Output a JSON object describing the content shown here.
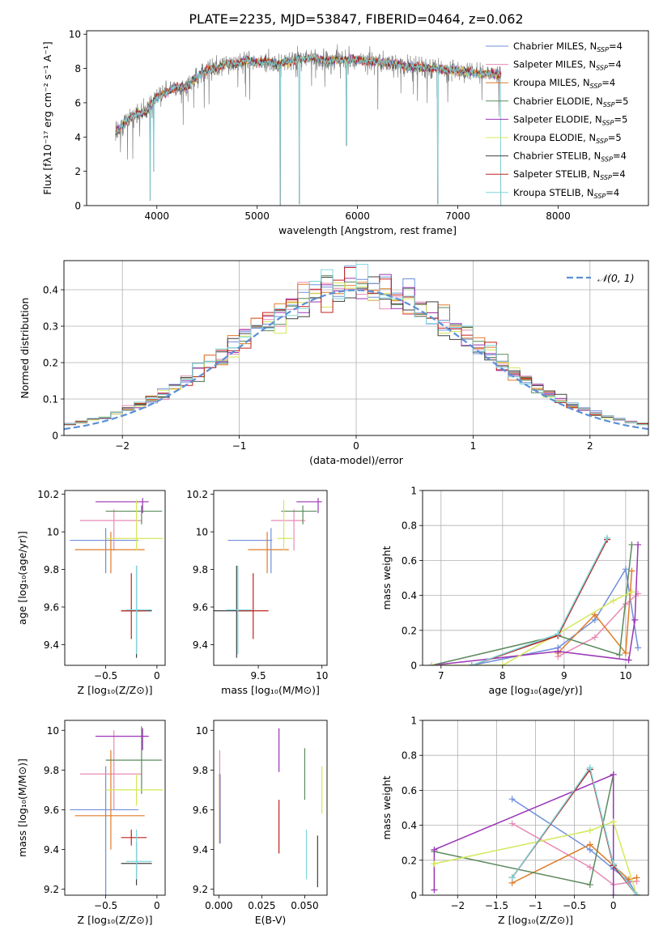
{
  "figure_title": "PLATE=2235, MJD=53847, FIBERID=0464, z=0.062",
  "colors": {
    "Chabrier MILES": "#6f8fdc",
    "Salpeter MILES": "#e88bb5",
    "Kroupa MILES": "#e07b28",
    "Chabrier ELODIE": "#5c8a5e",
    "Salpeter ELODIE": "#9b35b5",
    "Kroupa ELODIE": "#d4e85a",
    "Chabrier STELIB": "#404040",
    "Salpeter STELIB": "#c0221e",
    "Kroupa STELIB": "#7fd6dc",
    "data": "#808080",
    "gauss": "#5b8fd6",
    "grid": "#b0b0b0"
  },
  "chart_data": [
    {
      "id": "spectrum",
      "type": "line",
      "title": "PLATE=2235, MJD=53847, FIBERID=0464, z=0.062",
      "xlabel": "wavelength [Angstrom, rest frame]",
      "ylabel": "Flux [fλ10⁻¹⁷ erg cm⁻² s⁻¹ A⁻¹]",
      "xlim": [
        3300,
        8900
      ],
      "ylim": [
        0,
        10.2
      ],
      "xticks": [
        4000,
        5000,
        6000,
        7000,
        8000
      ],
      "yticks": [
        0,
        2,
        4,
        6,
        8,
        10
      ],
      "legend": [
        {
          "label": "Chabrier MILES, N",
          "sub": "SSP",
          "tail": "=4",
          "color_key": "Chabrier MILES"
        },
        {
          "label": "Salpeter MILES, N",
          "sub": "SSP",
          "tail": "=4",
          "color_key": "Salpeter MILES"
        },
        {
          "label": "Kroupa MILES, N",
          "sub": "SSP",
          "tail": "=4",
          "color_key": "Kroupa MILES"
        },
        {
          "label": "Chabrier ELODIE, N",
          "sub": "SSP",
          "tail": "=5",
          "color_key": "Chabrier ELODIE"
        },
        {
          "label": "Salpeter ELODIE, N",
          "sub": "SSP",
          "tail": "=5",
          "color_key": "Salpeter ELODIE"
        },
        {
          "label": "Kroupa ELODIE, N",
          "sub": "SSP",
          "tail": "=5",
          "color_key": "Kroupa ELODIE"
        },
        {
          "label": "Chabrier STELIB, N",
          "sub": "SSP",
          "tail": "=4",
          "color_key": "Chabrier STELIB"
        },
        {
          "label": "Salpeter STELIB, N",
          "sub": "SSP",
          "tail": "=4",
          "color_key": "Salpeter STELIB"
        },
        {
          "label": "Kroupa STELIB, N",
          "sub": "SSP",
          "tail": "=4",
          "color_key": "Kroupa STELIB"
        }
      ],
      "continuum": [
        [
          3590,
          4.3
        ],
        [
          3700,
          4.9
        ],
        [
          3800,
          5.4
        ],
        [
          3900,
          5.5
        ],
        [
          4000,
          6.3
        ],
        [
          4100,
          6.6
        ],
        [
          4200,
          6.9
        ],
        [
          4300,
          6.9
        ],
        [
          4400,
          7.5
        ],
        [
          4500,
          7.9
        ],
        [
          4600,
          8.0
        ],
        [
          4700,
          8.3
        ],
        [
          4800,
          8.3
        ],
        [
          4900,
          8.5
        ],
        [
          5000,
          8.3
        ],
        [
          5100,
          8.4
        ],
        [
          5200,
          8.2
        ],
        [
          5300,
          8.4
        ],
        [
          5400,
          8.5
        ],
        [
          5500,
          8.6
        ],
        [
          5600,
          8.6
        ],
        [
          5700,
          8.4
        ],
        [
          5800,
          8.5
        ],
        [
          5900,
          8.5
        ],
        [
          6000,
          8.5
        ],
        [
          6100,
          8.4
        ],
        [
          6200,
          8.4
        ],
        [
          6300,
          8.3
        ],
        [
          6400,
          8.2
        ],
        [
          6500,
          8.1
        ],
        [
          6600,
          8.1
        ],
        [
          6700,
          8.0
        ],
        [
          6800,
          8.0
        ],
        [
          6900,
          7.9
        ],
        [
          7000,
          7.9
        ],
        [
          7100,
          7.8
        ],
        [
          7200,
          7.7
        ],
        [
          7300,
          7.7
        ],
        [
          7420,
          7.6
        ]
      ],
      "data_range": [
        3590,
        7430
      ],
      "sharp_dips": [
        [
          3934,
          0.3
        ],
        [
          3968,
          2.0
        ],
        [
          5230,
          0.0
        ],
        [
          5420,
          0.1
        ],
        [
          5890,
          3.5
        ],
        [
          6800,
          0.1
        ],
        [
          7430,
          0.0
        ]
      ]
    },
    {
      "id": "residuals",
      "type": "histogram",
      "xlabel": "(data-model)/error",
      "ylabel": "Normed distribution",
      "xlim": [
        -2.5,
        2.5
      ],
      "ylim": [
        0,
        0.48
      ],
      "xticks": [
        -2,
        -1,
        0,
        1,
        2
      ],
      "yticks": [
        0,
        0.1,
        0.2,
        0.3,
        0.4
      ],
      "legend": "𝒩(0, 1)",
      "bin_width": 0.1
    },
    {
      "id": "z_age",
      "type": "scatter",
      "xlabel": "Z [log₁₀(Z/Z⊙)]",
      "ylabel": "age  [log₁₀(age/yr)]",
      "xlim": [
        -0.9,
        0.08
      ],
      "ylim": [
        9.29,
        10.22
      ],
      "xticks": [
        -0.5,
        0.0
      ],
      "yticks": [
        9.4,
        9.6,
        9.8,
        10.0,
        10.2
      ]
    },
    {
      "id": "mass_age",
      "type": "scatter",
      "xlabel": "mass [log₁₀(M/M⊙)]",
      "ylabel": "",
      "xlim": [
        9.15,
        10.04
      ],
      "ylim": [
        9.29,
        10.22
      ],
      "xticks": [
        9.5,
        10.0
      ],
      "yticks": [
        9.4,
        9.6,
        9.8,
        10.0,
        10.2
      ]
    },
    {
      "id": "age_weight",
      "type": "line",
      "xlabel": "age  [log₁₀(age/yr)]",
      "ylabel": "mass weight",
      "xlim": [
        6.7,
        10.37
      ],
      "ylim": [
        0,
        1.0
      ],
      "xticks": [
        7,
        8,
        9,
        10
      ],
      "yticks": [
        0,
        0.2,
        0.4,
        0.6,
        0.8,
        1.0
      ]
    },
    {
      "id": "z_mass",
      "type": "scatter",
      "xlabel": "Z [log₁₀(Z/Z⊙)]",
      "ylabel": "mass [log₁₀(M/M⊙)]",
      "xlim": [
        -0.9,
        0.08
      ],
      "ylim": [
        9.17,
        10.05
      ],
      "xticks": [
        -0.5,
        0.0
      ],
      "yticks": [
        9.2,
        9.4,
        9.6,
        9.8,
        10.0
      ]
    },
    {
      "id": "ebv_mass",
      "type": "scatter",
      "xlabel": "E(B-V)",
      "ylabel": "",
      "xlim": [
        -0.003,
        0.063
      ],
      "ylim": [
        9.17,
        10.05
      ],
      "xticks": [
        0.0,
        0.025,
        0.05
      ],
      "xticklabels": [
        "0.000",
        "0.025",
        "0.050"
      ],
      "yticks": [
        9.2,
        9.4,
        9.6,
        9.8,
        10.0
      ]
    },
    {
      "id": "z_weight",
      "type": "line",
      "xlabel": "Z [log₁₀(Z/Z⊙)]",
      "ylabel": "mass weight",
      "xlim": [
        -2.45,
        0.45
      ],
      "ylim": [
        0,
        1.0
      ],
      "xticks": [
        -2.0,
        -1.5,
        -1.0,
        -0.5,
        0.0
      ],
      "yticks": [
        0,
        0.2,
        0.4,
        0.6,
        0.8,
        1.0
      ]
    }
  ],
  "models": [
    {
      "key": "Chabrier MILES",
      "Z": -0.5,
      "Zerr": [
        -0.85,
        -0.18
      ],
      "age": 9.955,
      "ageErr": [
        9.78,
        10.02
      ],
      "mass": 9.6,
      "massErr": [
        9.26,
        9.61
      ],
      "mErr": [
        9.15,
        9.82
      ],
      "ebv": 0.0008,
      "ebvErr": [
        9.43,
        9.78
      ],
      "age_w": [
        [
          7.5,
          0.0
        ],
        [
          8.9,
          0.1
        ],
        [
          9.5,
          0.26
        ],
        [
          10.0,
          0.55
        ],
        [
          10.2,
          0.1
        ]
      ],
      "z_w": [
        [
          -1.3,
          0.55
        ],
        [
          -0.3,
          0.26
        ],
        [
          0.0,
          0.15
        ],
        [
          0.2,
          0.08
        ],
        [
          0.3,
          0.0
        ]
      ]
    },
    {
      "key": "Salpeter MILES",
      "Z": -0.42,
      "Zerr": [
        -0.75,
        -0.15
      ],
      "age": 10.06,
      "ageErr": [
        9.9,
        10.12
      ],
      "mass": 9.78,
      "massErr": [
        9.6,
        9.87
      ],
      "mErr": [
        9.6,
        10.0
      ],
      "ebv": 0.0005,
      "ebvErr": [
        9.6,
        9.9
      ],
      "age_w": [
        [
          8.9,
          0.05
        ],
        [
          9.5,
          0.16
        ],
        [
          10.0,
          0.35
        ],
        [
          10.2,
          0.41
        ]
      ],
      "z_w": [
        [
          -1.3,
          0.41
        ],
        [
          -0.3,
          0.16
        ],
        [
          0.0,
          0.06
        ],
        [
          0.3,
          0.08
        ]
      ]
    },
    {
      "key": "Kroupa MILES",
      "Z": -0.45,
      "Zerr": [
        -0.8,
        -0.12
      ],
      "age": 9.905,
      "ageErr": [
        9.78,
        10.0
      ],
      "mass": 9.57,
      "massErr": [
        9.42,
        9.74
      ],
      "mErr": [
        9.4,
        9.9
      ],
      "ebv": 0.0004,
      "ebvErr": [
        9.43,
        9.78
      ],
      "age_w": [
        [
          8.9,
          0.07
        ],
        [
          9.5,
          0.29
        ],
        [
          10.0,
          0.07
        ],
        [
          10.1,
          0.54
        ]
      ],
      "z_w": [
        [
          -1.3,
          0.07
        ],
        [
          -0.3,
          0.29
        ],
        [
          0.0,
          0.17
        ],
        [
          0.2,
          0.09
        ],
        [
          0.3,
          0.1
        ]
      ]
    },
    {
      "key": "Chabrier ELODIE",
      "Z": -0.15,
      "Zerr": [
        -0.5,
        0.05
      ],
      "age": 10.11,
      "ageErr": [
        10.04,
        10.14
      ],
      "mass": 9.85,
      "massErr": [
        9.68,
        9.96
      ],
      "mErr": [
        9.68,
        10.02
      ],
      "ebv": 0.05,
      "ebvErr": [
        9.65,
        9.91
      ],
      "age_w": [
        [
          6.85,
          0.0
        ],
        [
          8.9,
          0.17
        ],
        [
          9.9,
          0.06
        ],
        [
          10.1,
          0.69
        ]
      ],
      "z_w": [
        [
          -2.3,
          0.25
        ],
        [
          -0.3,
          0.06
        ],
        [
          0.0,
          0.69
        ]
      ]
    },
    {
      "key": "Salpeter ELODIE",
      "Z": -0.14,
      "Zerr": [
        -0.6,
        -0.08
      ],
      "age": 10.16,
      "ageErr": [
        10.1,
        10.18
      ],
      "mass": 9.97,
      "massErr": [
        9.8,
        10.0
      ],
      "mErr": [
        9.9,
        10.01
      ],
      "ebv": 0.035,
      "ebvErr": [
        9.79,
        10.01
      ],
      "age_w": [
        [
          6.85,
          0.0
        ],
        [
          8.9,
          0.08
        ],
        [
          10.05,
          0.03
        ],
        [
          10.15,
          0.26
        ],
        [
          10.2,
          0.69
        ]
      ],
      "z_w": [
        [
          -2.3,
          0.03
        ],
        [
          -2.3,
          0.26
        ],
        [
          0.0,
          0.69
        ],
        [
          0.0,
          0.0
        ]
      ]
    },
    {
      "key": "Kroupa ELODIE",
      "Z": -0.2,
      "Zerr": [
        -0.5,
        0.06
      ],
      "age": 9.965,
      "ageErr": [
        9.9,
        10.17
      ],
      "mass": 9.7,
      "massErr": [
        9.65,
        9.77
      ],
      "mErr": [
        9.62,
        9.78
      ],
      "ebv": 0.06,
      "ebvErr": [
        9.58,
        9.82
      ],
      "age_w": [
        [
          6.85,
          0.0
        ],
        [
          8.0,
          0.0
        ],
        [
          8.9,
          0.18
        ],
        [
          9.8,
          0.37
        ],
        [
          10.1,
          0.42
        ]
      ],
      "z_w": [
        [
          -2.3,
          0.18
        ],
        [
          -0.3,
          0.37
        ],
        [
          0.0,
          0.42
        ],
        [
          0.3,
          0.0
        ]
      ]
    },
    {
      "key": "Chabrier STELIB",
      "Z": -0.2,
      "Zerr": [
        -0.35,
        -0.05
      ],
      "age": 9.58,
      "ageErr": [
        9.33,
        9.82
      ],
      "mass": 9.33,
      "massErr": [
        9.15,
        9.46
      ],
      "mErr": [
        9.22,
        9.44
      ],
      "ebv": 0.0575,
      "ebvErr": [
        9.21,
        9.47
      ],
      "age_w": [
        [
          7.5,
          0.0
        ],
        [
          8.9,
          0.17
        ],
        [
          9.7,
          0.72
        ]
      ],
      "z_w": [
        [
          -1.3,
          0.1
        ],
        [
          -0.3,
          0.72
        ],
        [
          0.0,
          0.17
        ],
        [
          0.3,
          0.0
        ]
      ]
    },
    {
      "key": "Salpeter STELIB",
      "Z": -0.25,
      "Zerr": [
        -0.35,
        -0.1
      ],
      "age": 9.58,
      "ageErr": [
        9.43,
        9.78
      ],
      "mass": 9.46,
      "massErr": [
        9.33,
        9.58
      ],
      "mErr": [
        9.42,
        9.5
      ],
      "ebv": 0.035,
      "ebvErr": [
        9.38,
        9.65
      ],
      "age_w": [
        [
          7.5,
          0.0
        ],
        [
          8.9,
          0.17
        ],
        [
          9.7,
          0.72
        ]
      ],
      "z_w": [
        [
          -1.3,
          0.1
        ],
        [
          -0.3,
          0.72
        ],
        [
          0.0,
          0.17
        ],
        [
          0.3,
          0.0
        ]
      ]
    },
    {
      "key": "Kroupa STELIB",
      "Z": -0.2,
      "Zerr": [
        -0.3,
        -0.05
      ],
      "age": 9.585,
      "ageErr": [
        9.35,
        9.82
      ],
      "mass": 9.34,
      "massErr": [
        9.25,
        9.45
      ],
      "mErr": [
        9.25,
        9.5
      ],
      "ebv": 0.051,
      "ebvErr": [
        9.25,
        9.5
      ],
      "age_w": [
        [
          7.5,
          0.0
        ],
        [
          8.9,
          0.18
        ],
        [
          9.7,
          0.73
        ]
      ],
      "z_w": [
        [
          -1.3,
          0.1
        ],
        [
          -0.3,
          0.73
        ],
        [
          0.0,
          0.18
        ],
        [
          0.3,
          0.0
        ]
      ]
    }
  ]
}
